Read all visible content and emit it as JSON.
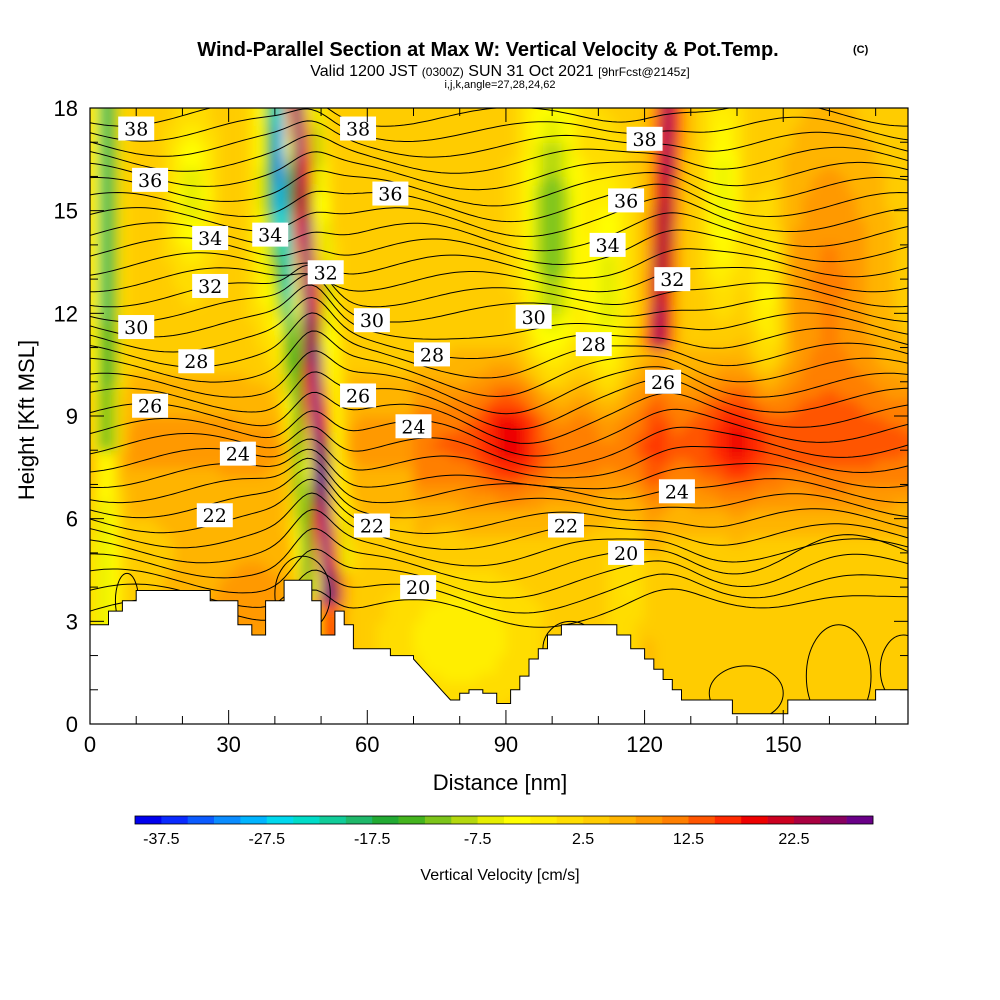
{
  "chart_data": {
    "type": "heatmap",
    "title": "Wind-Parallel Section at Max W: Vertical Velocity & Pot.Temp.",
    "title_mark": "(C)",
    "subtitle_main": "Valid 1200 JST",
    "subtitle_utc": "(0300Z)",
    "subtitle_date": "SUN 31 Oct 2021",
    "subtitle_fcst": "[9hrFcst@2145z]",
    "subtitle2": "i,j,k,angle=27,28,24,62",
    "xlabel": "Distance [nm]",
    "ylabel": "Height [Kft MSL]",
    "xlim": [
      0,
      177
    ],
    "ylim": [
      0,
      18
    ],
    "xticks": [
      "0",
      "30",
      "60",
      "90",
      "120",
      "150"
    ],
    "xtick_values": [
      0,
      30,
      60,
      90,
      120,
      150
    ],
    "yticks": [
      "0",
      "3",
      "6",
      "9",
      "12",
      "15",
      "18"
    ],
    "ytick_values": [
      0,
      3,
      6,
      9,
      12,
      15,
      18
    ],
    "colorbar": {
      "label": "Vertical Velocity [cm/s]",
      "min": -40,
      "max": 30,
      "step": 2.5,
      "tick_labels": [
        "-37.5",
        "-27.5",
        "-17.5",
        "-7.5",
        "2.5",
        "12.5",
        "22.5"
      ],
      "tick_values": [
        -37.5,
        -27.5,
        -17.5,
        -7.5,
        2.5,
        12.5,
        22.5
      ],
      "colors": [
        "#0000ee",
        "#0a2aff",
        "#0b5bff",
        "#0a8cff",
        "#00b4ff",
        "#00d8ee",
        "#00dcc8",
        "#11cc99",
        "#1fb86a",
        "#22aa33",
        "#44b41e",
        "#7cc41a",
        "#b4d80e",
        "#e6ee00",
        "#ffff00",
        "#ffee00",
        "#ffdd00",
        "#ffcc00",
        "#ffb400",
        "#ff9900",
        "#ff7f00",
        "#ff5500",
        "#ff2a00",
        "#ee0000",
        "#cc0020",
        "#aa0040",
        "#880060",
        "#6a0088"
      ]
    },
    "theta_contour_labels": [
      {
        "text": "38",
        "x": 10,
        "y": 17.4
      },
      {
        "text": "36",
        "x": 13,
        "y": 15.9
      },
      {
        "text": "34",
        "x": 26,
        "y": 14.2
      },
      {
        "text": "34",
        "x": 39,
        "y": 14.3
      },
      {
        "text": "32",
        "x": 26,
        "y": 12.8
      },
      {
        "text": "32",
        "x": 51,
        "y": 13.2
      },
      {
        "text": "30",
        "x": 10,
        "y": 11.6
      },
      {
        "text": "28",
        "x": 23,
        "y": 10.6
      },
      {
        "text": "26",
        "x": 13,
        "y": 9.3
      },
      {
        "text": "24",
        "x": 32,
        "y": 7.9
      },
      {
        "text": "22",
        "x": 27,
        "y": 6.1
      },
      {
        "text": "38",
        "x": 58,
        "y": 17.4
      },
      {
        "text": "36",
        "x": 65,
        "y": 15.5
      },
      {
        "text": "30",
        "x": 61,
        "y": 11.8
      },
      {
        "text": "28",
        "x": 74,
        "y": 10.8
      },
      {
        "text": "26",
        "x": 58,
        "y": 9.6
      },
      {
        "text": "24",
        "x": 70,
        "y": 8.7
      },
      {
        "text": "22",
        "x": 61,
        "y": 5.8
      },
      {
        "text": "20",
        "x": 71,
        "y": 4.0
      },
      {
        "text": "30",
        "x": 96,
        "y": 11.9
      },
      {
        "text": "28",
        "x": 109,
        "y": 11.1
      },
      {
        "text": "22",
        "x": 103,
        "y": 5.8
      },
      {
        "text": "20",
        "x": 116,
        "y": 5.0
      },
      {
        "text": "38",
        "x": 120,
        "y": 17.1
      },
      {
        "text": "36",
        "x": 116,
        "y": 15.3
      },
      {
        "text": "34",
        "x": 112,
        "y": 14.0
      },
      {
        "text": "32",
        "x": 126,
        "y": 13.0
      },
      {
        "text": "26",
        "x": 124,
        "y": 10.0
      },
      {
        "text": "24",
        "x": 127,
        "y": 6.8
      }
    ],
    "terrain_profile": [
      [
        0,
        2.9
      ],
      [
        4,
        2.9
      ],
      [
        4,
        3.3
      ],
      [
        7,
        3.3
      ],
      [
        7,
        3.6
      ],
      [
        10,
        3.6
      ],
      [
        10,
        3.9
      ],
      [
        26,
        3.9
      ],
      [
        26,
        3.6
      ],
      [
        32,
        3.6
      ],
      [
        32,
        2.9
      ],
      [
        35,
        2.9
      ],
      [
        35,
        2.6
      ],
      [
        38,
        2.6
      ],
      [
        38,
        3.6
      ],
      [
        42,
        3.6
      ],
      [
        42,
        4.2
      ],
      [
        48,
        4.2
      ],
      [
        48,
        3.6
      ],
      [
        50,
        3.6
      ],
      [
        50,
        2.6
      ],
      [
        53,
        2.6
      ],
      [
        53,
        3.3
      ],
      [
        55,
        3.3
      ],
      [
        55,
        2.9
      ],
      [
        57,
        2.9
      ],
      [
        57,
        2.2
      ],
      [
        65,
        2.2
      ],
      [
        65,
        2.0
      ],
      [
        70,
        2.0
      ],
      [
        70,
        1.9
      ],
      [
        72,
        1.6
      ],
      [
        74,
        1.3
      ],
      [
        76,
        1.0
      ],
      [
        78,
        0.7
      ],
      [
        80,
        0.7
      ],
      [
        80,
        0.9
      ],
      [
        82,
        0.9
      ],
      [
        82,
        1.0
      ],
      [
        85,
        1.0
      ],
      [
        85,
        0.9
      ],
      [
        88,
        0.9
      ],
      [
        88,
        0.6
      ],
      [
        91,
        0.6
      ],
      [
        91,
        1.0
      ],
      [
        93,
        1.0
      ],
      [
        93,
        1.4
      ],
      [
        95,
        1.4
      ],
      [
        95,
        1.9
      ],
      [
        97,
        1.9
      ],
      [
        97,
        2.2
      ],
      [
        99,
        2.2
      ],
      [
        99,
        2.6
      ],
      [
        102,
        2.6
      ],
      [
        102,
        2.9
      ],
      [
        114,
        2.9
      ],
      [
        114,
        2.6
      ],
      [
        117,
        2.6
      ],
      [
        117,
        2.2
      ],
      [
        120,
        2.2
      ],
      [
        120,
        1.9
      ],
      [
        122,
        1.9
      ],
      [
        122,
        1.6
      ],
      [
        124,
        1.6
      ],
      [
        124,
        1.3
      ],
      [
        126,
        1.3
      ],
      [
        126,
        1.0
      ],
      [
        128,
        1.0
      ],
      [
        128,
        0.7
      ],
      [
        139,
        0.7
      ],
      [
        139,
        0.3
      ],
      [
        151,
        0.3
      ],
      [
        151,
        0.7
      ],
      [
        170,
        0.7
      ],
      [
        170,
        1.0
      ],
      [
        177,
        1.0
      ]
    ]
  }
}
